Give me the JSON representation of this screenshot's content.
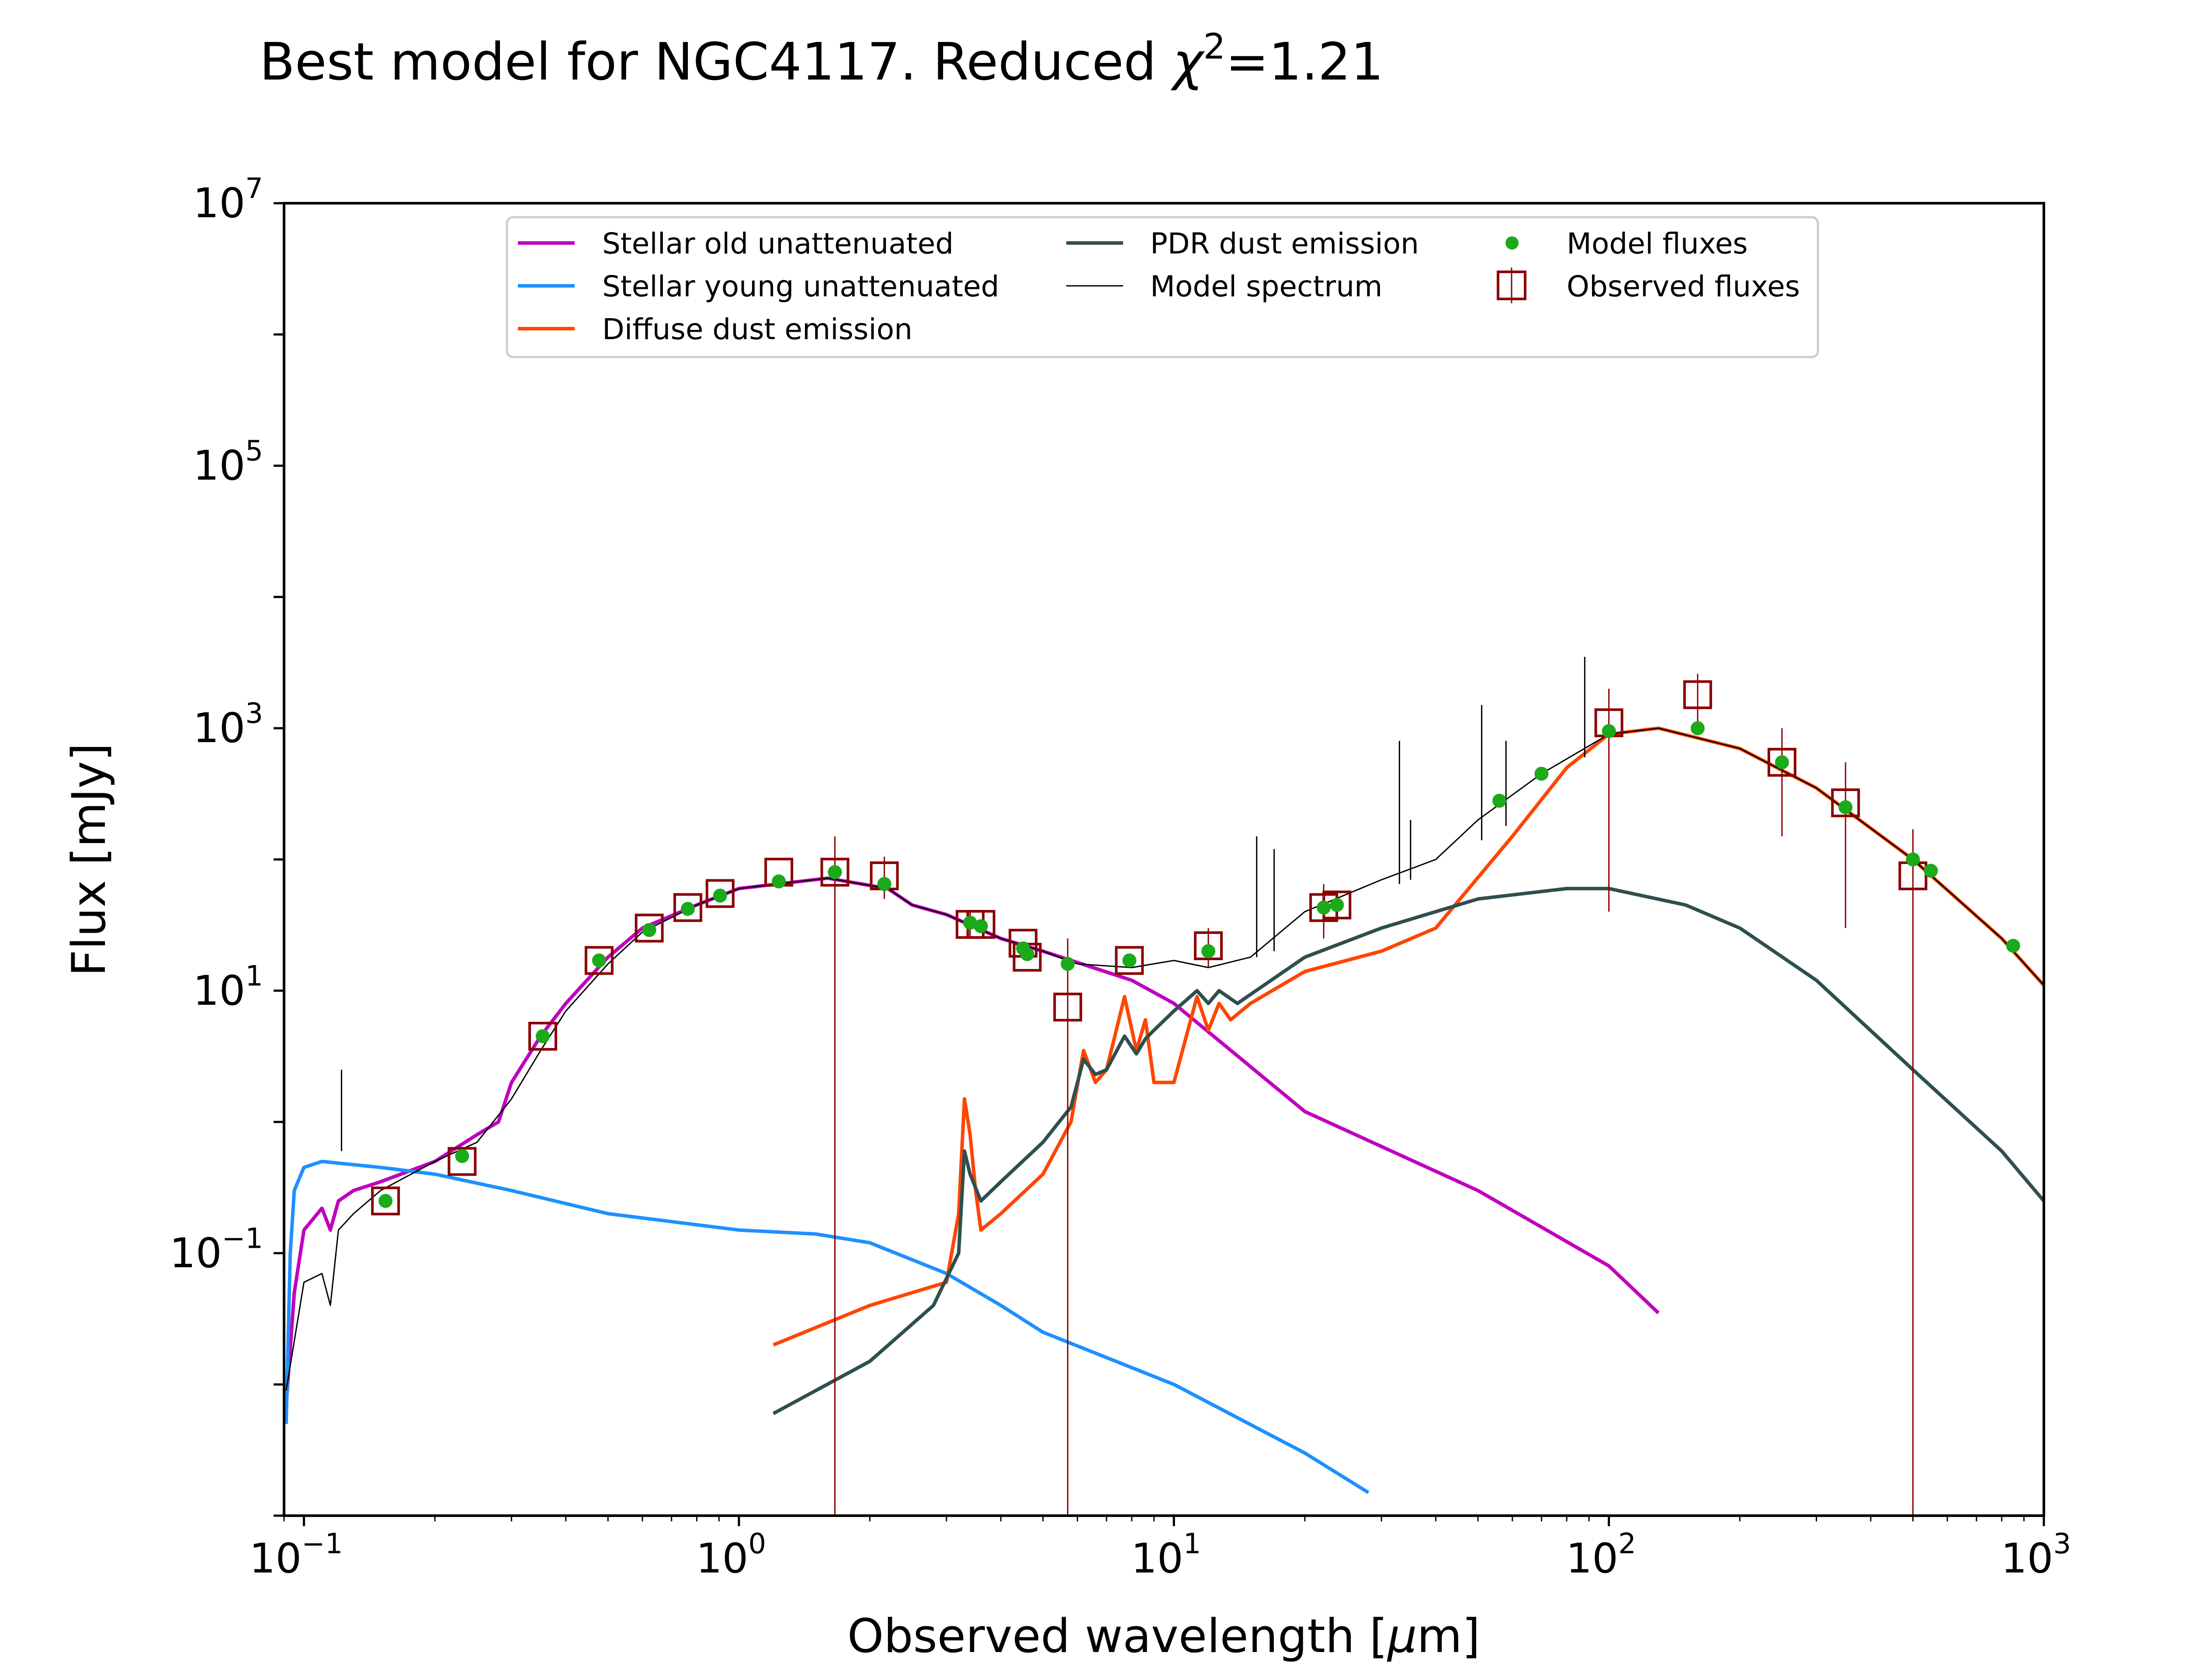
{
  "chart_data": {
    "type": "line",
    "title_prefix": "Best model for NGC4117. Reduced ",
    "title_chi": "χ",
    "title_sup": "2",
    "title_suffix": "=1.21",
    "xlabel_prefix": "Observed wavelength [",
    "xlabel_mu": "μ",
    "xlabel_suffix": "m]",
    "ylabel": "Flux [mJy]",
    "x_scale": "log",
    "y_scale": "log",
    "xlim": [
      0.09,
      1000
    ],
    "ylim": [
      0.001,
      10000000
    ],
    "grid": false,
    "legend_position": "top-center",
    "x_ticks": [
      {
        "value": 0.1,
        "base": "10",
        "exp": "−1"
      },
      {
        "value": 1,
        "base": "10",
        "exp": "0"
      },
      {
        "value": 10,
        "base": "10",
        "exp": "1"
      },
      {
        "value": 100,
        "base": "10",
        "exp": "2"
      },
      {
        "value": 1000,
        "base": "10",
        "exp": "3"
      }
    ],
    "y_ticks": [
      {
        "value": 0.1,
        "base": "10",
        "exp": "−1"
      },
      {
        "value": 10,
        "base": "10",
        "exp": "1"
      },
      {
        "value": 1000,
        "base": "10",
        "exp": "3"
      },
      {
        "value": 100000,
        "base": "10",
        "exp": "5"
      },
      {
        "value": 10000000,
        "base": "10",
        "exp": "7"
      }
    ],
    "series": [
      {
        "name": "Stellar old unattenuated",
        "color": "#bf00bf",
        "style": "line",
        "points": [
          [
            0.091,
            0.007
          ],
          [
            0.095,
            0.05
          ],
          [
            0.1,
            0.15
          ],
          [
            0.11,
            0.22
          ],
          [
            0.115,
            0.15
          ],
          [
            0.12,
            0.25
          ],
          [
            0.13,
            0.3
          ],
          [
            0.15,
            0.35
          ],
          [
            0.2,
            0.5
          ],
          [
            0.25,
            0.8
          ],
          [
            0.28,
            1.0
          ],
          [
            0.3,
            2.0
          ],
          [
            0.35,
            4.5
          ],
          [
            0.4,
            8
          ],
          [
            0.5,
            18
          ],
          [
            0.6,
            30
          ],
          [
            0.8,
            45
          ],
          [
            1.0,
            60
          ],
          [
            1.6,
            72
          ],
          [
            2.2,
            60
          ],
          [
            2.5,
            45
          ],
          [
            3.0,
            38
          ],
          [
            4.0,
            25
          ],
          [
            5.0,
            20
          ],
          [
            8.0,
            12
          ],
          [
            10,
            8
          ],
          [
            20,
            1.2
          ],
          [
            50,
            0.3
          ],
          [
            100,
            0.08
          ],
          [
            130,
            0.035
          ]
        ]
      },
      {
        "name": "Stellar young unattenuated",
        "color": "#1e90ff",
        "style": "line",
        "points": [
          [
            0.091,
            0.005
          ],
          [
            0.093,
            0.1
          ],
          [
            0.095,
            0.3
          ],
          [
            0.1,
            0.45
          ],
          [
            0.11,
            0.5
          ],
          [
            0.15,
            0.45
          ],
          [
            0.2,
            0.4
          ],
          [
            0.3,
            0.3
          ],
          [
            0.5,
            0.2
          ],
          [
            1.0,
            0.15
          ],
          [
            1.5,
            0.14
          ],
          [
            2.0,
            0.12
          ],
          [
            3.0,
            0.07
          ],
          [
            4.0,
            0.04
          ],
          [
            5.0,
            0.025
          ],
          [
            10,
            0.01
          ],
          [
            20,
            0.003
          ],
          [
            28,
            0.0015
          ]
        ]
      },
      {
        "name": "Diffuse dust emission",
        "color": "#ff4500",
        "style": "line",
        "points": [
          [
            1.2,
            0.02
          ],
          [
            2.0,
            0.04
          ],
          [
            3.0,
            0.06
          ],
          [
            3.2,
            0.2
          ],
          [
            3.3,
            1.5
          ],
          [
            3.4,
            0.8
          ],
          [
            3.5,
            0.3
          ],
          [
            3.6,
            0.15
          ],
          [
            4.0,
            0.2
          ],
          [
            5.0,
            0.4
          ],
          [
            5.8,
            1.0
          ],
          [
            6.2,
            3.5
          ],
          [
            6.6,
            2.0
          ],
          [
            7.0,
            2.5
          ],
          [
            7.7,
            9.0
          ],
          [
            8.2,
            3.5
          ],
          [
            8.6,
            6.0
          ],
          [
            9.0,
            2.0
          ],
          [
            10,
            2.0
          ],
          [
            11.3,
            9.0
          ],
          [
            12,
            5.0
          ],
          [
            12.7,
            8.0
          ],
          [
            13.5,
            6.0
          ],
          [
            15,
            8
          ],
          [
            20,
            14
          ],
          [
            30,
            20
          ],
          [
            40,
            30
          ],
          [
            60,
            150
          ],
          [
            80,
            500
          ],
          [
            100,
            900
          ],
          [
            130,
            1000
          ],
          [
            200,
            700
          ],
          [
            300,
            350
          ],
          [
            500,
            100
          ],
          [
            800,
            25
          ],
          [
            1000,
            11
          ]
        ]
      },
      {
        "name": "PDR dust emission",
        "color": "#2f4f4f",
        "style": "line",
        "points": [
          [
            1.2,
            0.006
          ],
          [
            2.0,
            0.015
          ],
          [
            2.8,
            0.04
          ],
          [
            3.2,
            0.1
          ],
          [
            3.3,
            0.6
          ],
          [
            3.4,
            0.4
          ],
          [
            3.6,
            0.25
          ],
          [
            4.0,
            0.35
          ],
          [
            5.0,
            0.7
          ],
          [
            5.8,
            1.3
          ],
          [
            6.2,
            3.0
          ],
          [
            6.6,
            2.3
          ],
          [
            7.0,
            2.5
          ],
          [
            7.7,
            4.5
          ],
          [
            8.2,
            3.3
          ],
          [
            8.6,
            4.3
          ],
          [
            9.0,
            5.0
          ],
          [
            10,
            7.0
          ],
          [
            11.3,
            10
          ],
          [
            12,
            8
          ],
          [
            12.7,
            10
          ],
          [
            14,
            8
          ],
          [
            20,
            18
          ],
          [
            30,
            30
          ],
          [
            50,
            50
          ],
          [
            80,
            60
          ],
          [
            100,
            60
          ],
          [
            150,
            45
          ],
          [
            200,
            30
          ],
          [
            300,
            12
          ],
          [
            500,
            2.5
          ],
          [
            800,
            0.6
          ],
          [
            1000,
            0.25
          ]
        ]
      },
      {
        "name": "Model spectrum",
        "color": "#000000",
        "style": "thin-line",
        "points": [
          [
            0.091,
            0.009
          ],
          [
            0.1,
            0.06
          ],
          [
            0.11,
            0.07
          ],
          [
            0.115,
            0.04
          ],
          [
            0.12,
            0.15
          ],
          [
            0.13,
            0.2
          ],
          [
            0.15,
            0.3
          ],
          [
            0.2,
            0.5
          ],
          [
            0.25,
            0.7
          ],
          [
            0.3,
            1.5
          ],
          [
            0.35,
            3.5
          ],
          [
            0.4,
            7
          ],
          [
            0.5,
            16
          ],
          [
            0.6,
            28
          ],
          [
            0.8,
            45
          ],
          [
            1.0,
            60
          ],
          [
            1.6,
            72
          ],
          [
            2.2,
            60
          ],
          [
            2.5,
            45
          ],
          [
            3.0,
            38
          ],
          [
            4.0,
            25
          ],
          [
            5.0,
            20
          ],
          [
            6.0,
            16
          ],
          [
            8.0,
            15
          ],
          [
            10,
            17
          ],
          [
            12,
            15
          ],
          [
            15,
            18
          ],
          [
            20,
            40
          ],
          [
            30,
            70
          ],
          [
            40,
            100
          ],
          [
            50,
            200
          ],
          [
            70,
            450
          ],
          [
            100,
            900
          ],
          [
            130,
            1000
          ],
          [
            200,
            700
          ],
          [
            300,
            350
          ],
          [
            500,
            100
          ],
          [
            800,
            25
          ],
          [
            1000,
            11
          ]
        ]
      }
    ],
    "model_fluxes": {
      "name": "Model fluxes",
      "color": "#1aaa1a",
      "points": [
        [
          0.154,
          0.25
        ],
        [
          0.231,
          0.55
        ],
        [
          0.354,
          4.5
        ],
        [
          0.477,
          17
        ],
        [
          0.622,
          29
        ],
        [
          0.763,
          42
        ],
        [
          0.905,
          53
        ],
        [
          1.235,
          68
        ],
        [
          1.662,
          80
        ],
        [
          2.159,
          65
        ],
        [
          3.4,
          33
        ],
        [
          3.6,
          31
        ],
        [
          4.5,
          21
        ],
        [
          4.6,
          19
        ],
        [
          5.7,
          16
        ],
        [
          7.9,
          17
        ],
        [
          12.0,
          20
        ],
        [
          22.1,
          43
        ],
        [
          23.7,
          45
        ],
        [
          56,
          280
        ],
        [
          70,
          450
        ],
        [
          100,
          950
        ],
        [
          160,
          1000
        ],
        [
          250,
          550
        ],
        [
          350,
          250
        ],
        [
          500,
          100
        ],
        [
          550,
          82
        ],
        [
          850,
          22
        ]
      ]
    },
    "observed_fluxes": {
      "name": "Observed fluxes",
      "color": "#8b0000",
      "points": [
        [
          0.154,
          0.25
        ],
        [
          0.231,
          0.5
        ],
        [
          0.354,
          4.5
        ],
        [
          0.477,
          17
        ],
        [
          0.622,
          30
        ],
        [
          0.763,
          43
        ],
        [
          0.905,
          55
        ],
        [
          1.235,
          80
        ],
        [
          1.662,
          80
        ],
        [
          2.159,
          75
        ],
        [
          3.4,
          32
        ],
        [
          3.6,
          32
        ],
        [
          4.5,
          23
        ],
        [
          4.6,
          18
        ],
        [
          5.7,
          7.5
        ],
        [
          7.9,
          17
        ],
        [
          12.0,
          22
        ],
        [
          22.1,
          43
        ],
        [
          23.7,
          45
        ],
        [
          100,
          1100
        ],
        [
          160,
          1800
        ],
        [
          250,
          550
        ],
        [
          350,
          270
        ],
        [
          500,
          75
        ]
      ],
      "error_bars": [
        [
          1.662,
          0.001,
          150
        ],
        [
          2.159,
          50,
          105
        ],
        [
          3.4,
          25,
          40
        ],
        [
          12.0,
          15,
          30
        ],
        [
          22.1,
          25,
          65
        ],
        [
          100,
          40,
          2000
        ],
        [
          160,
          1100,
          2600
        ],
        [
          250,
          150,
          1000
        ],
        [
          350,
          30,
          550
        ],
        [
          500,
          0.001,
          170
        ],
        [
          5.7,
          0.001,
          25
        ]
      ]
    },
    "emission_lines": [
      [
        0.122,
        0.6,
        2.5
      ],
      [
        15.5,
        18,
        150
      ],
      [
        17.0,
        20,
        120
      ],
      [
        33,
        65,
        800
      ],
      [
        35,
        70,
        200
      ],
      [
        51,
        140,
        1500
      ],
      [
        58,
        180,
        800
      ],
      [
        88,
        600,
        3500
      ]
    ]
  }
}
